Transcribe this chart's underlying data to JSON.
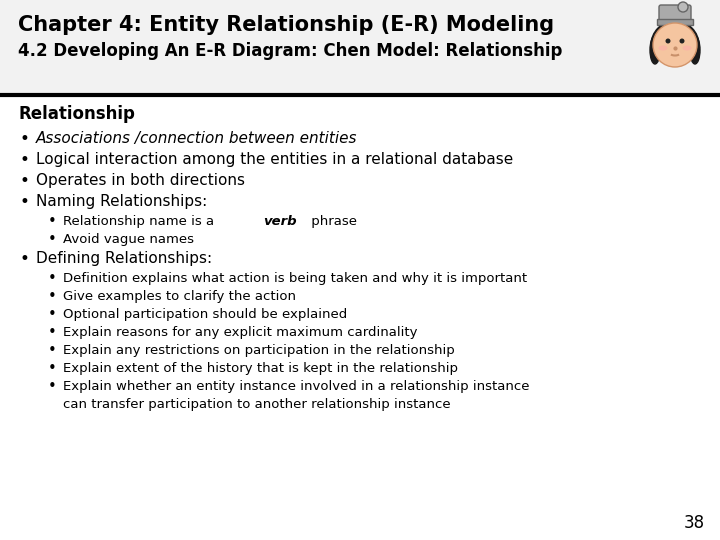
{
  "title_line1": "Chapter 4: Entity Relationship (E-R) Modeling",
  "title_line2": "4.2 Developing An E-R Diagram: Chen Model: Relationship",
  "background_color": "#ffffff",
  "header_bg": "#f2f2f2",
  "title_color": "#000000",
  "body_color": "#000000",
  "page_number": "38",
  "header_line_color": "#000000",
  "content": [
    {
      "level": 0,
      "type": "heading",
      "text": "Relationship",
      "italic": false,
      "bold": true
    },
    {
      "level": 1,
      "type": "bullet",
      "text": "Associations /connection between entities",
      "italic": true,
      "bold": false
    },
    {
      "level": 1,
      "type": "bullet",
      "text": "Logical interaction among the entities in a relational database",
      "italic": false,
      "bold": false
    },
    {
      "level": 1,
      "type": "bullet",
      "text": "Operates in both directions",
      "italic": false,
      "bold": false
    },
    {
      "level": 1,
      "type": "bullet",
      "text": "Naming Relationships:",
      "italic": false,
      "bold": false
    },
    {
      "level": 2,
      "type": "bullet_verbphrase",
      "text": "Relationship name is a verb phrase",
      "italic": false,
      "bold": false,
      "verb_before": "Relationship name is a ",
      "verb_word": "verb",
      "verb_after": " phrase"
    },
    {
      "level": 2,
      "type": "bullet",
      "text": "Avoid vague names",
      "italic": false,
      "bold": false
    },
    {
      "level": 1,
      "type": "bullet",
      "text": "Defining Relationships:",
      "italic": false,
      "bold": false
    },
    {
      "level": 2,
      "type": "bullet",
      "text": "Definition explains what action is being taken and why it is important",
      "italic": false,
      "bold": false
    },
    {
      "level": 2,
      "type": "bullet",
      "text": "Give examples to clarify the action",
      "italic": false,
      "bold": false
    },
    {
      "level": 2,
      "type": "bullet",
      "text": "Optional participation should be explained",
      "italic": false,
      "bold": false
    },
    {
      "level": 2,
      "type": "bullet",
      "text": "Explain reasons for any explicit maximum cardinality",
      "italic": false,
      "bold": false
    },
    {
      "level": 2,
      "type": "bullet",
      "text": "Explain any restrictions on participation in the relationship",
      "italic": false,
      "bold": false
    },
    {
      "level": 2,
      "type": "bullet",
      "text": "Explain extent of the history that is kept in the relationship",
      "italic": false,
      "bold": false
    },
    {
      "level": 2,
      "type": "bullet_wrap",
      "text": "Explain whether an entity instance involved in a relationship instance",
      "italic": false,
      "bold": false,
      "text2": "can transfer participation to another relationship instance"
    }
  ],
  "fs_heading": 12,
  "fs_l1": 11,
  "fs_l2": 9.5,
  "fs_title1": 15,
  "fs_title2": 12,
  "lh_heading": 26,
  "lh_l1": 21,
  "lh_l2": 18,
  "lh_l2_wrap": 34
}
